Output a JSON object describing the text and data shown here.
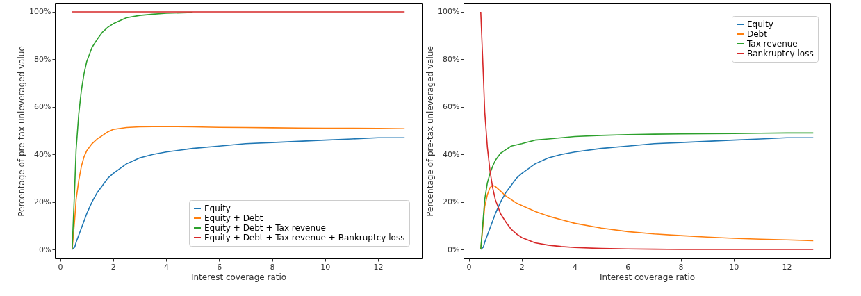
{
  "chart_data": [
    {
      "type": "line",
      "xlabel": "Interest coverage ratio",
      "ylabel": "Percentage of pre-tax unleveraged value",
      "xlim": [
        -0.2,
        13.65
      ],
      "xticks": [
        0,
        2,
        4,
        6,
        8,
        10,
        12
      ],
      "ylim": [
        -3.8,
        103.5
      ],
      "yticks": [
        {
          "value": 0,
          "label": "0%"
        },
        {
          "value": 20,
          "label": "20%"
        },
        {
          "value": 40,
          "label": "40%"
        },
        {
          "value": 60,
          "label": "60%"
        },
        {
          "value": 80,
          "label": "80%"
        },
        {
          "value": 100,
          "label": "100%"
        }
      ],
      "grid": false,
      "legend": "bottom right",
      "line_style": "solid",
      "x": [
        0.45,
        0.55,
        0.6,
        0.7,
        0.8,
        0.9,
        1.0,
        1.2,
        1.4,
        1.6,
        1.8,
        2,
        2.5,
        3,
        3.5,
        4,
        5,
        6,
        7,
        8,
        9,
        10,
        11,
        12,
        13
      ],
      "series": [
        {
          "name": "Equity",
          "color": "#1f77b4",
          "values": [
            0,
            1,
            3,
            6,
            9,
            12,
            15,
            20,
            24,
            27,
            30,
            32,
            36,
            38.5,
            40,
            41,
            42.5,
            43.5,
            44.5,
            45,
            45.5,
            46,
            46.5,
            47,
            47
          ]
        },
        {
          "name": "Equity + Debt",
          "color": "#ff7f0e",
          "values": [
            0,
            13,
            21,
            29,
            35,
            39,
            41.5,
            44.5,
            46.5,
            48,
            49.5,
            50.5,
            51.3,
            51.6,
            51.7,
            51.7,
            51.6,
            51.4,
            51.3,
            51.2,
            51.1,
            51,
            51,
            50.9,
            50.8
          ]
        },
        {
          "name": "Equity + Debt + Tax revenue",
          "color": "#2ca02c",
          "values": [
            0,
            27,
            42,
            57,
            67,
            74,
            79,
            85,
            88.5,
            91.5,
            93.5,
            95,
            97.5,
            98.5,
            99,
            99.4,
            99.7,
            null,
            null,
            null,
            null,
            null,
            null,
            null,
            null
          ]
        },
        {
          "name": "Equity + Debt + Tax revenue + Bankruptcy loss",
          "color": "#d62728",
          "values": [
            100,
            100,
            100,
            100,
            100,
            100,
            100,
            100,
            100,
            100,
            100,
            100,
            100,
            100,
            100,
            100,
            100,
            100,
            100,
            100,
            100,
            100,
            100,
            100,
            100
          ]
        }
      ]
    },
    {
      "type": "line",
      "xlabel": "Interest coverage ratio",
      "ylabel": "Percentage of pre-tax unleveraged value",
      "xlim": [
        -0.2,
        13.65
      ],
      "xticks": [
        0,
        2,
        4,
        6,
        8,
        10,
        12
      ],
      "ylim": [
        -3.8,
        103.5
      ],
      "yticks": [
        {
          "value": 0,
          "label": "0%"
        },
        {
          "value": 20,
          "label": "20%"
        },
        {
          "value": 40,
          "label": "40%"
        },
        {
          "value": 60,
          "label": "60%"
        },
        {
          "value": 80,
          "label": "80%"
        },
        {
          "value": 100,
          "label": "100%"
        }
      ],
      "grid": false,
      "legend": "top right",
      "line_style": "solid",
      "x": [
        0.45,
        0.55,
        0.6,
        0.7,
        0.8,
        0.9,
        1.0,
        1.2,
        1.4,
        1.6,
        1.8,
        2,
        2.5,
        3,
        3.5,
        4,
        5,
        6,
        7,
        8,
        9,
        10,
        11,
        12,
        13
      ],
      "series": [
        {
          "name": "Equity",
          "color": "#1f77b4",
          "values": [
            0,
            1,
            3,
            6,
            9,
            12,
            15,
            20,
            24,
            27,
            30,
            32,
            36,
            38.5,
            40,
            41,
            42.5,
            43.5,
            44.5,
            45,
            45.5,
            46,
            46.5,
            47,
            47
          ]
        },
        {
          "name": "Debt",
          "color": "#ff7f0e",
          "values": [
            0,
            12,
            18,
            23,
            26,
            27,
            26.5,
            24.5,
            22.5,
            21,
            19.5,
            18.5,
            16,
            14,
            12.5,
            11,
            9,
            7.5,
            6.5,
            5.8,
            5.2,
            4.7,
            4.3,
            4,
            3.7
          ]
        },
        {
          "name": "Tax revenue",
          "color": "#2ca02c",
          "values": [
            0,
            14,
            21,
            28,
            32,
            35,
            37.5,
            40.5,
            42,
            43.5,
            44,
            44.5,
            46,
            46.5,
            47,
            47.5,
            48,
            48.3,
            48.5,
            48.6,
            48.7,
            48.8,
            48.9,
            49,
            49
          ]
        },
        {
          "name": "Bankruptcy loss",
          "color": "#d62728",
          "values": [
            100,
            73,
            58,
            43,
            33,
            26,
            21,
            15,
            11.5,
            8.5,
            6.5,
            5,
            2.8,
            1.8,
            1.2,
            0.8,
            0.4,
            0.2,
            0.1,
            0,
            0,
            0,
            0,
            0,
            0
          ]
        }
      ]
    }
  ]
}
